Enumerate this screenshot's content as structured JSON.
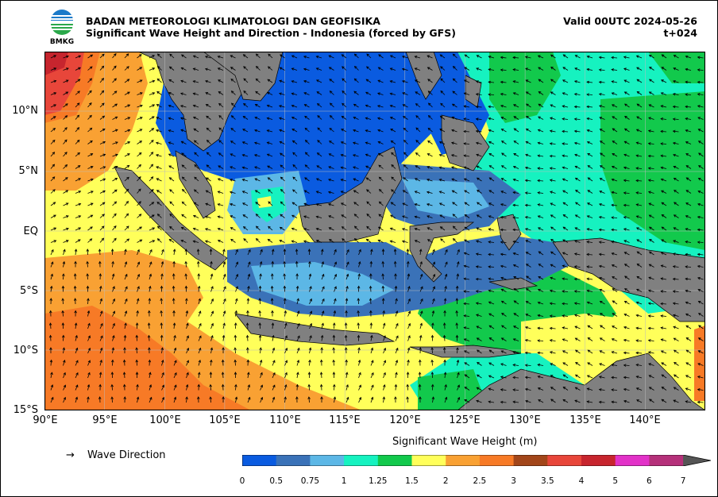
{
  "header": {
    "agency": "BADAN METEOROLOGI KLIMATOLOGI DAN GEOFISIKA",
    "subtitle": "Significant Wave Height and Direction - Indonesia (forced by GFS)",
    "valid": "Valid 00UTC 2024-05-26",
    "lead": "t+024",
    "logo_text": "BMKG"
  },
  "axes": {
    "lat_labels": [
      "10°N",
      "5°N",
      "EQ",
      "5°S",
      "10°S",
      "15°S"
    ],
    "lon_labels": [
      "90°E",
      "95°E",
      "100°E",
      "105°E",
      "110°E",
      "115°E",
      "120°E",
      "125°E",
      "130°E",
      "135°E",
      "140°E"
    ],
    "lat_range": [
      -15,
      15
    ],
    "lon_range": [
      90,
      145
    ]
  },
  "legend": {
    "arrow_symbol": "→",
    "label": "Wave Direction"
  },
  "colorbar": {
    "title": "Significant Wave Height (m)",
    "ticks": [
      "0",
      "0.5",
      "0.75",
      "1",
      "1.25",
      "1.5",
      "2",
      "2.5",
      "3",
      "3.5",
      "4",
      "5",
      "6",
      "7"
    ],
    "colors": [
      "#0a5be0",
      "#3a72b8",
      "#5cb7e6",
      "#16f2c0",
      "#12c94c",
      "#ffff5a",
      "#f9a133",
      "#f77a26",
      "#a2461a",
      "#e8463a",
      "#c7252e",
      "#e232c8",
      "#b5307a",
      "#555555"
    ]
  }
}
